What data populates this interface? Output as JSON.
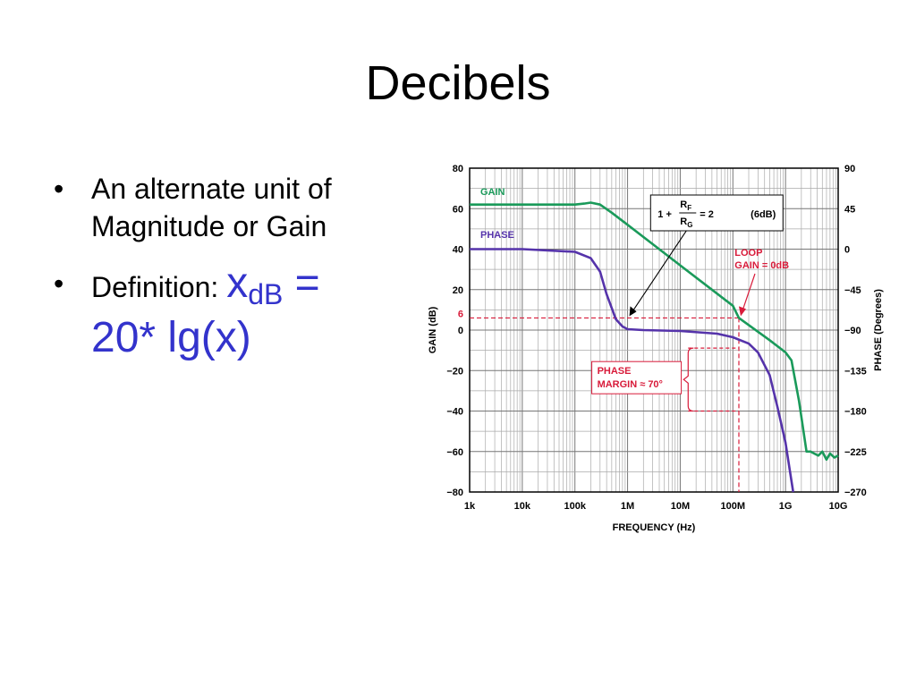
{
  "slide": {
    "title": "Decibels",
    "bullet1_line1": "An alternate unit of",
    "bullet1_line2": "Magnitude or Gain",
    "bullet2_label": "Definition: ",
    "formula_x": "x",
    "formula_sub": "dB",
    "formula_eq": " =",
    "formula_rhs": "20* lg(x)",
    "bullet_char": "•"
  },
  "chart_data": {
    "type": "line",
    "xlabel": "FREQUENCY (Hz)",
    "ylabel": "GAIN (dB)",
    "y2label": "PHASE (Degrees)",
    "x_scale": "log",
    "xlim": [
      1000,
      10000000000
    ],
    "ylim": [
      -80,
      80
    ],
    "y2lim": [
      -270,
      90
    ],
    "grid": true,
    "x_ticks": [
      "1k",
      "10k",
      "100k",
      "1M",
      "10M",
      "100M",
      "1G",
      "10G"
    ],
    "y_ticks": [
      "80",
      "60",
      "40",
      "20",
      "0",
      "−20",
      "−40",
      "−60",
      "−80"
    ],
    "y2_ticks": [
      "90",
      "45",
      "0",
      "−45",
      "−90",
      "−135",
      "−180",
      "−225",
      "−270"
    ],
    "colors": {
      "gain": "#1a9a5a",
      "phase": "#5533aa",
      "annotation": "#d81b3a"
    },
    "series": [
      {
        "name": "GAIN",
        "axis": "left",
        "x": [
          1000,
          10000,
          100000,
          150000,
          200000,
          300000,
          500000,
          1000000,
          10000000,
          100000000,
          130000000,
          500000000,
          1000000000,
          1300000000,
          1800000000,
          2500000000,
          3000000000,
          3500000000,
          4200000000,
          5000000000,
          6000000000,
          7000000000,
          8500000000,
          10000000000
        ],
        "values": [
          62,
          62,
          62,
          62.5,
          63,
          62,
          58,
          52,
          32,
          12,
          6,
          -5,
          -11,
          -15,
          -35,
          -60,
          -60,
          -61,
          -62,
          -60,
          -64,
          -61,
          -63,
          -62
        ]
      },
      {
        "name": "PHASE",
        "axis": "right",
        "x": [
          1000,
          10000,
          100000,
          200000,
          300000,
          400000,
          600000,
          800000,
          1000000,
          2000000,
          10000000,
          50000000,
          100000000,
          200000000,
          300000000,
          500000000,
          700000000,
          1000000000,
          1200000000,
          1400000000
        ],
        "values": [
          0,
          0,
          -3,
          -10,
          -25,
          -50,
          -78,
          -86,
          -89,
          -90,
          -91,
          -94,
          -98,
          -105,
          -115,
          -140,
          -175,
          -215,
          -245,
          -270
        ]
      }
    ],
    "annotations": {
      "gain_label": "GAIN",
      "phase_label": "PHASE",
      "gain_6db_label": "6",
      "formula_prefix": "1 +",
      "formula_num": "R",
      "formula_num_sub": "F",
      "formula_den": "R",
      "formula_den_sub": "G",
      "formula_value": "= 2",
      "formula_db": "(6dB)",
      "loop_line1": "LOOP",
      "loop_line2": "GAIN = 0dB",
      "pm_line1": "PHASE",
      "pm_line2": "MARGIN ≈ 70°"
    }
  }
}
